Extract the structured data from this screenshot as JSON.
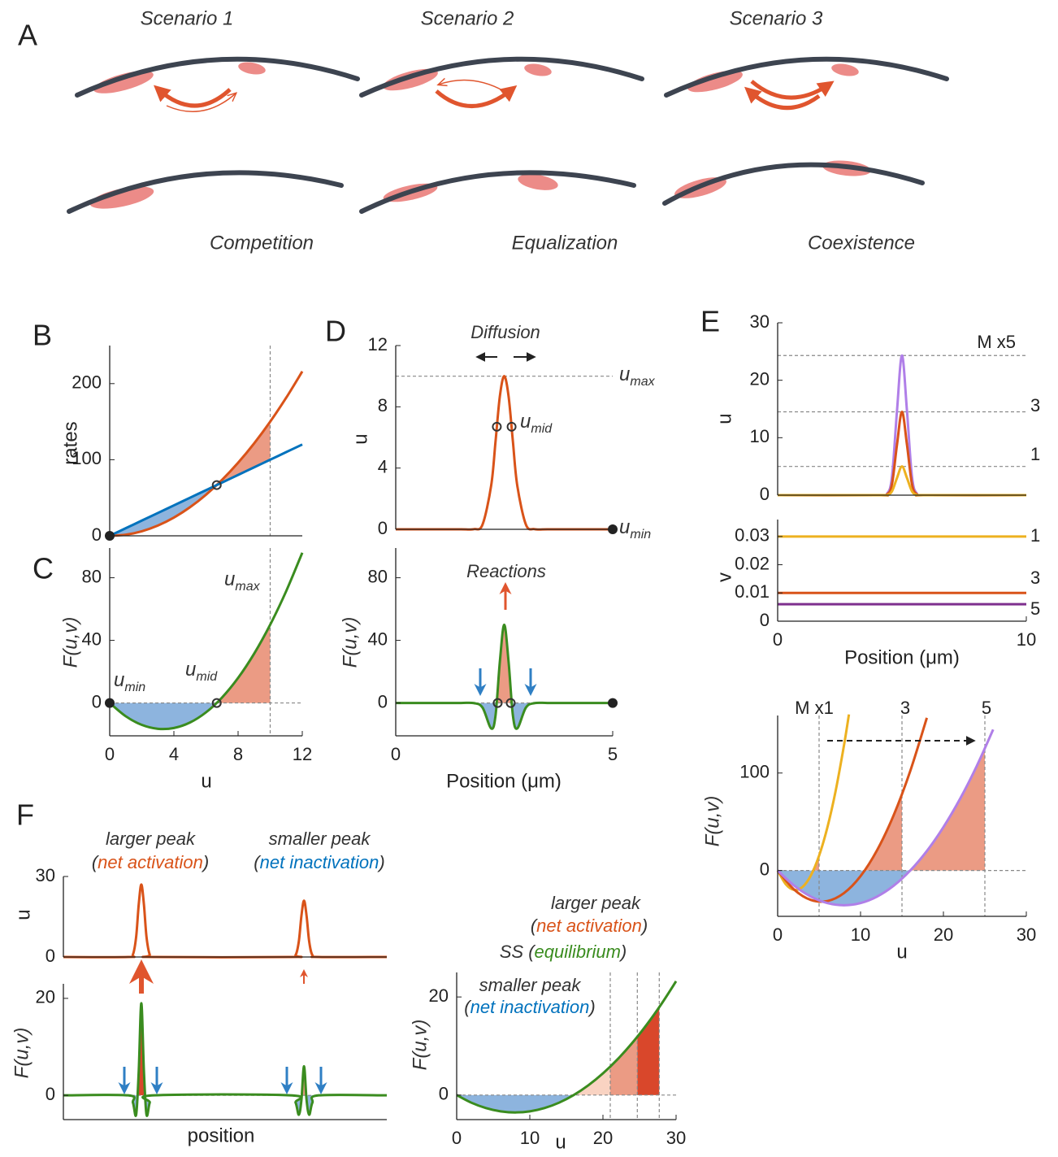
{
  "panel_a": {
    "label": "A",
    "scenarios": [
      "Scenario 1",
      "Scenario 2",
      "Scenario 3"
    ],
    "outcomes": [
      "Competition",
      "Equalization",
      "Coexistence"
    ]
  },
  "chart_data": [
    {
      "panel": "B",
      "type": "line",
      "ylabel": "rates",
      "xlim": [
        0,
        12
      ],
      "ylim": [
        0,
        250
      ],
      "yticks": [
        0,
        100,
        200
      ],
      "x": [
        0,
        1,
        2,
        3,
        4,
        5,
        6,
        7,
        8,
        9,
        10,
        11,
        12
      ],
      "series": [
        {
          "color": "#d95319",
          "values": [
            0,
            1.5,
            6,
            13.5,
            24,
            37.5,
            54,
            73.5,
            96,
            121.5,
            150,
            181.5,
            216
          ]
        },
        {
          "color": "#0072bd",
          "values": [
            0,
            10,
            20,
            30,
            40,
            50,
            60,
            70,
            80,
            90,
            100,
            110,
            120
          ]
        }
      ],
      "vlines": [
        10
      ],
      "markers": [
        {
          "x": 6.67,
          "y": 66.7
        }
      ],
      "dots": [
        {
          "x": 0,
          "y": 0
        }
      ],
      "shades": [
        {
          "series": 0,
          "between": 1,
          "from": 0,
          "to": 6.67,
          "color": "#8db4de"
        },
        {
          "series": 0,
          "between": 1,
          "from": 6.67,
          "to": 10,
          "color": "#eb9b84"
        }
      ]
    },
    {
      "panel": "C",
      "type": "line",
      "ylabel": "F(u,v)",
      "xlabel": "u",
      "xlim": [
        0,
        12
      ],
      "ylim": [
        -21,
        99
      ],
      "xticks": [
        0,
        4,
        8,
        12
      ],
      "yticks": [
        0,
        40,
        80
      ],
      "x": [
        0,
        1,
        2,
        3,
        4,
        5,
        6,
        7,
        8,
        9,
        10,
        11,
        12
      ],
      "series": [
        {
          "color": "#3a8c1f",
          "values": [
            0,
            -8.5,
            -14,
            -16.5,
            -16,
            -12.5,
            -6,
            3.5,
            16,
            31.5,
            50,
            71.5,
            96
          ]
        }
      ],
      "hlines": [
        0
      ],
      "vlines": [
        10
      ],
      "markers": [
        {
          "x": 6.67,
          "y": 0
        }
      ],
      "dots": [
        {
          "x": 0,
          "y": 0
        }
      ],
      "shades": [
        {
          "series": 0,
          "from": 0,
          "to": 6.67,
          "color": "#8db4de"
        },
        {
          "series": 0,
          "from": 6.67,
          "to": 10,
          "color": "#eb9b84"
        }
      ],
      "annotations": [
        {
          "text": "u",
          "sub": "min"
        },
        {
          "text": "u",
          "sub": "mid"
        },
        {
          "text": "u",
          "sub": "max"
        }
      ]
    },
    {
      "panel": "D",
      "type": "line",
      "ylabel": "u",
      "xlim": [
        0,
        5
      ],
      "ylim": [
        0,
        12
      ],
      "yticks": [
        0,
        4,
        8,
        12
      ],
      "x": [
        0,
        1,
        1.5,
        1.8,
        2,
        2.2,
        2.3,
        2.4,
        2.5,
        2.6,
        2.7,
        2.8,
        3,
        3.2,
        3.5,
        4,
        5
      ],
      "series": [
        {
          "color": "#d95319",
          "values": [
            0,
            0,
            0,
            0.01,
            0.31,
            2.87,
            5.74,
            8.7,
            10,
            8.7,
            5.74,
            2.87,
            0.31,
            0.01,
            0,
            0,
            0
          ]
        }
      ],
      "hlines": [
        10
      ],
      "markers": [
        {
          "x": 2.33,
          "y": 6.7
        },
        {
          "x": 2.67,
          "y": 6.7
        }
      ],
      "dots": [
        {
          "x": 5,
          "y": 0
        }
      ],
      "annotations": [
        {
          "text": "Diffusion"
        },
        {
          "text": "u",
          "sub": "max"
        },
        {
          "text": "u",
          "sub": "mid"
        },
        {
          "text": "u",
          "sub": "min"
        }
      ]
    },
    {
      "type": "line",
      "ylabel": "F(u,v)",
      "xlabel": "Position (μm)",
      "xlim": [
        0,
        5
      ],
      "ylim": [
        -21,
        99
      ],
      "xticks": [
        0,
        5
      ],
      "yticks": [
        0,
        40,
        80
      ],
      "x": [
        0,
        1,
        1.5,
        1.8,
        2,
        2.2,
        2.3,
        2.4,
        2.5,
        2.6,
        2.7,
        2.8,
        3,
        3.2,
        3.5,
        4,
        5
      ],
      "series": [
        {
          "color": "#3a8c1f",
          "values": [
            0,
            0,
            0,
            -0.1,
            -2.96,
            -16.3,
            -8,
            26.5,
            50,
            26.5,
            -8,
            -16.3,
            -2.96,
            -0.1,
            0,
            0,
            0
          ]
        }
      ],
      "hlines": [
        0
      ],
      "markers": [
        {
          "x": 2.35,
          "y": 0
        },
        {
          "x": 2.65,
          "y": 0
        }
      ],
      "dots": [
        {
          "x": 5,
          "y": 0
        }
      ],
      "shades": [
        {
          "series": 0,
          "from": 1.5,
          "to": 2.35,
          "color": "#8db4de"
        },
        {
          "series": 0,
          "from": 2.35,
          "to": 2.65,
          "color": "#eb9b84"
        },
        {
          "series": 0,
          "from": 2.65,
          "to": 3.5,
          "color": "#8db4de"
        }
      ],
      "annotations": [
        {
          "text": "Reactions"
        }
      ]
    },
    {
      "panel": "E",
      "type": "line",
      "ylabel": "u",
      "xlim": [
        0,
        10
      ],
      "ylim": [
        0,
        30
      ],
      "yticks": [
        0,
        10,
        20,
        30
      ],
      "x": [
        0,
        4,
        4.4,
        4.6,
        4.8,
        5,
        5.2,
        5.4,
        5.6,
        6,
        10
      ],
      "series": [
        {
          "color": "#b07fe8",
          "values": [
            0,
            0,
            0.27,
            3.3,
            14.7,
            24.3,
            14.7,
            3.3,
            0.27,
            0,
            0
          ]
        },
        {
          "color": "#d95319",
          "values": [
            0,
            0,
            0.16,
            1.96,
            8.8,
            14.5,
            8.8,
            1.96,
            0.16,
            0,
            0
          ]
        },
        {
          "color": "#edb120",
          "values": [
            0,
            0,
            0.05,
            0.7,
            3,
            5,
            3,
            0.7,
            0.05,
            0,
            0
          ]
        }
      ],
      "hlines": [
        24.3,
        14.5,
        5
      ],
      "annotations": [
        {
          "text": "M x5"
        },
        {
          "text": "3"
        },
        {
          "text": "1"
        }
      ]
    },
    {
      "type": "line",
      "ylabel": "v",
      "xlabel": "Position (μm)",
      "xlim": [
        0,
        10
      ],
      "ylim": [
        0,
        0.036
      ],
      "xticks": [
        0,
        10
      ],
      "yticks": [
        0,
        0.01,
        0.02,
        0.03
      ],
      "x": [
        0,
        10
      ],
      "series": [
        {
          "color": "#edb120",
          "values": [
            0.03,
            0.03
          ]
        },
        {
          "color": "#d95319",
          "values": [
            0.01,
            0.01
          ]
        },
        {
          "color": "#7e2f8e",
          "values": [
            0.006,
            0.006
          ]
        }
      ],
      "annotations": [
        {
          "text": "1"
        },
        {
          "text": "3"
        },
        {
          "text": "5"
        }
      ]
    },
    {
      "type": "line",
      "ylabel": "F(u,v)",
      "xlabel": "u",
      "xlim": [
        0,
        30
      ],
      "ylim": [
        -47,
        159
      ],
      "xticks": [
        0,
        10,
        20,
        30
      ],
      "yticks": [
        0,
        100
      ],
      "series": [
        {
          "color": "#edb120",
          "x": [
            0,
            1,
            2,
            3,
            4,
            5,
            6,
            7,
            8,
            8.6
          ],
          "values": [
            0,
            -14.3,
            -19.9,
            -16.9,
            -5.2,
            15.2,
            44.2,
            81.8,
            128.2,
            160.1
          ]
        },
        {
          "color": "#d95319",
          "x": [
            0,
            2,
            4,
            6,
            8,
            10,
            12,
            14,
            16,
            18
          ],
          "values": [
            0,
            -19.7,
            -30.2,
            -31.3,
            -23.2,
            -5.8,
            20.9,
            56.8,
            102.1,
            156.6
          ]
        },
        {
          "color": "#b07fe8",
          "x": [
            0,
            2,
            4,
            6,
            8,
            10,
            12,
            14,
            16,
            18,
            20,
            22,
            24,
            26
          ],
          "values": [
            0,
            -15.6,
            -26.7,
            -33.4,
            -35.6,
            -33.4,
            -26.7,
            -15.6,
            0,
            20,
            44.5,
            73.4,
            106.8,
            144.6
          ]
        }
      ],
      "hlines": [
        0
      ],
      "vlines": [
        5,
        15,
        25
      ],
      "shades": [
        {
          "series": 2,
          "from": 0,
          "to": 16,
          "color": "#8db4de"
        },
        {
          "series": 0,
          "from": 4.3,
          "to": 5,
          "color": "#eb9b84"
        },
        {
          "series": 1,
          "from": 10.5,
          "to": 15,
          "color": "#eb9b84"
        },
        {
          "series": 2,
          "from": 16,
          "to": 25,
          "color": "#eb9b84"
        }
      ],
      "annotations": [
        {
          "text": "M x1"
        },
        {
          "text": "3"
        },
        {
          "text": "5"
        }
      ]
    },
    {
      "panel": "F",
      "type": "line",
      "ylabel": "u",
      "xlim": [
        0,
        1
      ],
      "ylim": [
        0,
        30
      ],
      "yticks": [
        0,
        30
      ],
      "x": [
        0,
        0.2,
        0.215,
        0.225,
        0.233,
        0.241,
        0.249,
        0.257,
        0.267,
        0.28,
        0.7,
        0.718,
        0.728,
        0.736,
        0.744,
        0.752,
        0.76,
        0.77,
        0.79,
        1
      ],
      "series": [
        {
          "color": "#d95319",
          "values": [
            0,
            0,
            0.9,
            7.5,
            19.6,
            27,
            19.6,
            7.5,
            0.9,
            0,
            0,
            0.7,
            5.8,
            15.3,
            21,
            15.3,
            5.8,
            0.7,
            0,
            0
          ]
        }
      ],
      "annotations": [
        {
          "text": "larger peak"
        },
        {
          "parts": [
            "(",
            "net activation",
            ")"
          ]
        },
        {
          "text": "smaller peak"
        },
        {
          "parts": [
            "(",
            "net inactivation",
            ")"
          ]
        }
      ]
    },
    {
      "type": "line",
      "ylabel": "F(u,v)",
      "xlabel": "position",
      "xlim": [
        0,
        1
      ],
      "ylim": [
        -5,
        23
      ],
      "yticks": [
        0,
        20
      ],
      "x": [
        0,
        0.2,
        0.215,
        0.225,
        0.233,
        0.241,
        0.249,
        0.257,
        0.267,
        0.28,
        0.7,
        0.718,
        0.728,
        0.736,
        0.744,
        0.752,
        0.76,
        0.77,
        0.79,
        1
      ],
      "series": [
        {
          "color": "#3a8c1f",
          "values": [
            0,
            0,
            -1.5,
            -4,
            5,
            19,
            5,
            -4,
            -1.5,
            0,
            0,
            -1.5,
            -4,
            -1,
            6,
            -1,
            -4,
            -1.5,
            0,
            0
          ]
        }
      ],
      "hlines": [
        0
      ],
      "shades": [
        {
          "series": 0,
          "from": 0.2,
          "to": 0.229,
          "color": "#8db4de"
        },
        {
          "series": 0,
          "from": 0.229,
          "to": 0.253,
          "color": "#d9472b"
        },
        {
          "series": 0,
          "from": 0.253,
          "to": 0.28,
          "color": "#8db4de"
        },
        {
          "series": 0,
          "from": 0.7,
          "to": 0.738,
          "color": "#8db4de"
        },
        {
          "series": 0,
          "from": 0.738,
          "to": 0.75,
          "color": "#eb9b84"
        },
        {
          "series": 0,
          "from": 0.75,
          "to": 0.79,
          "color": "#8db4de"
        }
      ]
    },
    {
      "type": "line",
      "ylabel": "F(u,v)",
      "xlabel": "u",
      "xlim": [
        0,
        30
      ],
      "ylim": [
        -5,
        25
      ],
      "xticks": [
        0,
        10,
        20,
        30
      ],
      "yticks": [
        0,
        20
      ],
      "x": [
        0,
        2,
        4,
        6,
        8,
        10,
        12,
        14,
        16,
        18,
        20,
        22,
        24,
        26,
        28,
        30
      ],
      "series": [
        {
          "color": "#3a8c1f",
          "values": [
            0,
            -1.55,
            -2.65,
            -3.32,
            -3.54,
            -3.32,
            -2.65,
            -1.55,
            0,
            1.99,
            4.42,
            7.3,
            10.62,
            14.38,
            18.58,
            23.2
          ]
        }
      ],
      "hlines": [
        0
      ],
      "vlines": [
        21,
        24.7,
        27.7
      ],
      "shades": [
        {
          "series": 0,
          "from": 0,
          "to": 16,
          "color": "#8db4de"
        },
        {
          "series": 0,
          "from": 16,
          "to": 21,
          "color": "#f9d3c2"
        },
        {
          "series": 0,
          "from": 21,
          "to": 24.7,
          "color": "#eb9b84"
        },
        {
          "series": 0,
          "from": 24.7,
          "to": 27.7,
          "color": "#d9472b"
        }
      ],
      "annotations": [
        {
          "text": "larger peak"
        },
        {
          "parts": [
            "(",
            "net activation",
            ")"
          ]
        },
        {
          "parts": [
            "SS (",
            "equilibrium",
            ")"
          ]
        },
        {
          "text": "smaller peak"
        },
        {
          "parts": [
            "(",
            "net inactivation",
            ")"
          ]
        }
      ]
    }
  ]
}
